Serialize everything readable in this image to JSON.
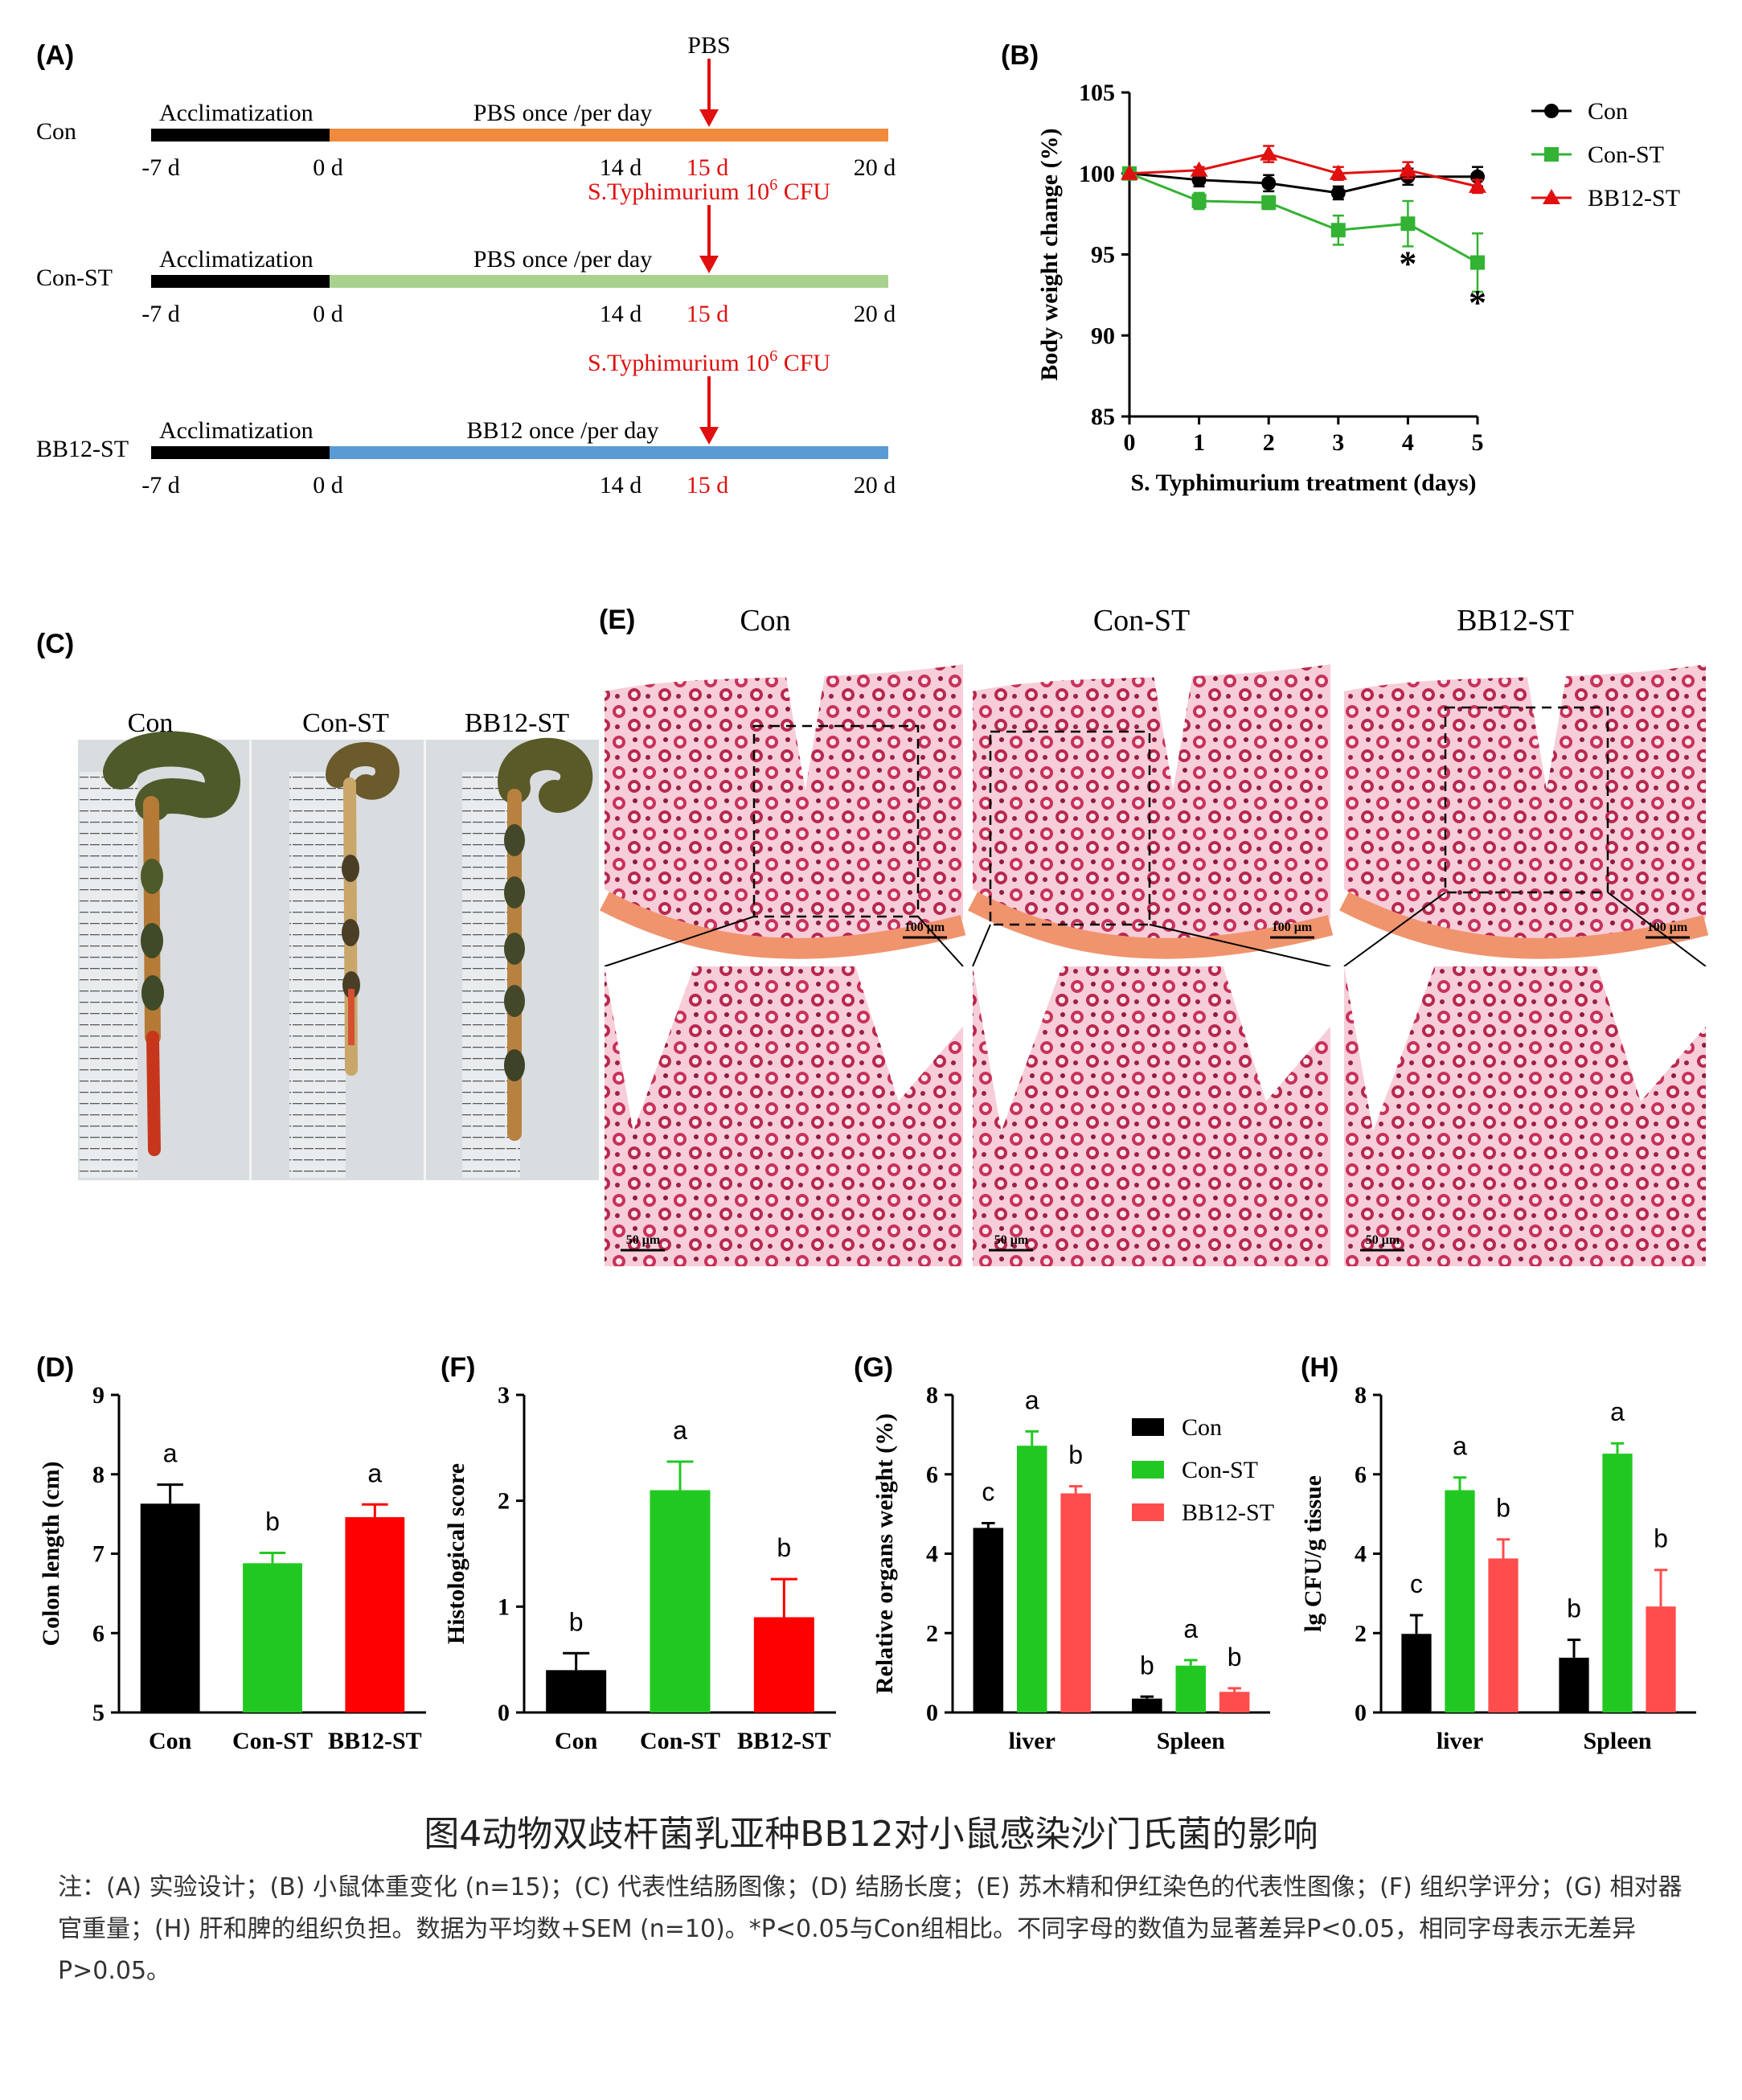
{
  "colors": {
    "black": "#000000",
    "orange": "#f08a3c",
    "lightgreen": "#a9d18e",
    "blue": "#5b9bd5",
    "red": "#e01010",
    "green": "#33b233",
    "brightgreen": "#22c822",
    "pinkred": "#ff4d4d",
    "tissue": "#c8325a"
  },
  "panel_a": {
    "label": "(A)",
    "rows": [
      {
        "group": "Con",
        "acclim": "Acclimatization",
        "treatment": "PBS  once /per day",
        "arrow_text": "PBS",
        "arrow_sup": "",
        "arrow_tail": "",
        "arrow_color": "#000000",
        "bar_color": "#f08a3c",
        "ticks": [
          "-7 d",
          "0 d",
          "14 d",
          "15 d",
          "20 d"
        ]
      },
      {
        "group": "Con-ST",
        "acclim": "Acclimatization",
        "treatment": "PBS once /per day",
        "arrow_text": "S.Typhimurium 10",
        "arrow_sup": "6",
        "arrow_tail": " CFU",
        "arrow_color": "#e01010",
        "bar_color": "#a9d18e",
        "ticks": [
          "-7 d",
          "0 d",
          "14 d",
          "15 d",
          "20 d"
        ]
      },
      {
        "group": "BB12-ST",
        "acclim": "Acclimatization",
        "treatment": "BB12 once /per day",
        "arrow_text": "S.Typhimurium 10",
        "arrow_sup": "6",
        "arrow_tail": " CFU",
        "arrow_color": "#e01010",
        "bar_color": "#5b9bd5",
        "ticks": [
          "-7 d",
          "0 d",
          "14 d",
          "15 d",
          "20 d"
        ]
      }
    ]
  },
  "panel_c": {
    "label": "(C)",
    "groups": [
      "Con",
      "Con-ST",
      "BB12-ST"
    ]
  },
  "panel_e": {
    "label": "(E)",
    "groups": [
      "Con",
      "Con-ST",
      "BB12-ST"
    ],
    "scale_top": "100 μm",
    "scale_bottom": "50 μm"
  },
  "chart_data": [
    {
      "panel": "(B)",
      "type": "line",
      "xlabel": "S. Typhimurium treatment (days)",
      "ylabel": "Body weight change (%)",
      "x": [
        0,
        1,
        2,
        3,
        4,
        5
      ],
      "xlim": [
        0,
        5
      ],
      "ylim": [
        85,
        105
      ],
      "yticks": [
        85,
        90,
        95,
        100,
        105
      ],
      "legend_position": "top-right",
      "series": [
        {
          "name": "Con",
          "color": "#000000",
          "marker": "circle",
          "values": [
            100,
            99.6,
            99.4,
            98.8,
            99.8,
            99.8
          ],
          "err": [
            0,
            0.4,
            0.5,
            0.4,
            0.5,
            0.6
          ]
        },
        {
          "name": "Con-ST",
          "color": "#33b233",
          "marker": "square",
          "values": [
            100,
            98.3,
            98.2,
            96.5,
            96.9,
            94.5
          ],
          "err": [
            0,
            0.5,
            0.4,
            0.9,
            1.4,
            1.8
          ]
        },
        {
          "name": "BB12-ST",
          "color": "#e01010",
          "marker": "triangle",
          "values": [
            100,
            100.2,
            101.2,
            100.0,
            100.2,
            99.2
          ],
          "err": [
            0,
            0.2,
            0.5,
            0.4,
            0.5,
            0.4
          ]
        }
      ],
      "annotations": [
        {
          "x": 4,
          "y": 94.6,
          "text": "*"
        },
        {
          "x": 5,
          "y": 92.2,
          "text": "*"
        }
      ]
    },
    {
      "panel": "(D)",
      "type": "bar",
      "ylabel": "Colon length (cm)",
      "ylim": [
        5,
        9
      ],
      "yticks": [
        5,
        6,
        7,
        8,
        9
      ],
      "categories": [
        "Con",
        "Con-ST",
        "BB12-ST"
      ],
      "values": [
        7.63,
        6.88,
        7.46
      ],
      "err": [
        0.24,
        0.13,
        0.16
      ],
      "colors": [
        "#000000",
        "#22c822",
        "#ff0000"
      ],
      "letters": [
        "a",
        "b",
        "a"
      ]
    },
    {
      "panel": "(F)",
      "type": "bar",
      "ylabel": "Histological score",
      "ylim": [
        0,
        3
      ],
      "yticks": [
        0,
        1,
        2,
        3
      ],
      "categories": [
        "Con",
        "Con-ST",
        "BB12-ST"
      ],
      "values": [
        0.4,
        2.1,
        0.9
      ],
      "err": [
        0.16,
        0.27,
        0.36
      ],
      "colors": [
        "#000000",
        "#22c822",
        "#ff0000"
      ],
      "letters": [
        "b",
        "a",
        "b"
      ]
    },
    {
      "panel": "(G)",
      "type": "bar",
      "ylabel": "Relative organs weight (%)",
      "ylim": [
        0,
        8
      ],
      "yticks": [
        0,
        2,
        4,
        6,
        8
      ],
      "categories": [
        "liver",
        "Spleen"
      ],
      "legend_position": "top-right",
      "series": [
        {
          "name": "Con",
          "color": "#000000",
          "values": [
            4.65,
            0.35
          ],
          "err": [
            0.12,
            0.05
          ],
          "letters": [
            "c",
            "b"
          ]
        },
        {
          "name": "Con-ST",
          "color": "#22c822",
          "values": [
            6.72,
            1.18
          ],
          "err": [
            0.36,
            0.14
          ],
          "letters": [
            "a",
            "a"
          ]
        },
        {
          "name": "BB12-ST",
          "color": "#ff4d4d",
          "values": [
            5.52,
            0.52
          ],
          "err": [
            0.18,
            0.09
          ],
          "letters": [
            "b",
            "b"
          ]
        }
      ]
    },
    {
      "panel": "(H)",
      "type": "bar",
      "ylabel": "lg CFU/g tissue",
      "ylim": [
        0,
        8
      ],
      "yticks": [
        0,
        2,
        4,
        6,
        8
      ],
      "categories": [
        "liver",
        "Spleen"
      ],
      "series": [
        {
          "name": "Con",
          "color": "#000000",
          "values": [
            1.98,
            1.38
          ],
          "err": [
            0.47,
            0.45
          ],
          "letters": [
            "c",
            "b"
          ]
        },
        {
          "name": "Con-ST",
          "color": "#22c822",
          "values": [
            5.6,
            6.52
          ],
          "err": [
            0.32,
            0.26
          ],
          "letters": [
            "a",
            "a"
          ]
        },
        {
          "name": "BB12-ST",
          "color": "#ff4d4d",
          "values": [
            3.88,
            2.67
          ],
          "err": [
            0.48,
            0.92
          ],
          "letters": [
            "b",
            "b"
          ]
        }
      ]
    }
  ],
  "caption": {
    "title": "图4动物双歧杆菌乳亚种BB12对小鼠感染沙门氏菌的影响",
    "note": "注：(A) 实验设计；(B) 小鼠体重变化 (n=15)；(C) 代表性结肠图像；(D) 结肠长度；(E) 苏木精和伊红染色的代表性图像；(F) 组织学评分；(G) 相对器官重量；(H) 肝和脾的组织负担。数据为平均数+SEM (n=10)。*P<0.05与Con组相比。不同字母的数值为显著差异P<0.05，相同字母表示无差异P>0.05。"
  }
}
